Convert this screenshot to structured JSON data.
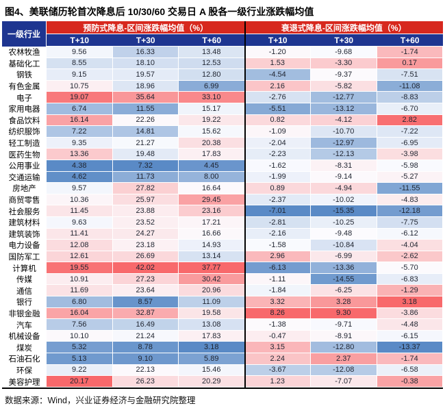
{
  "title": "图4、美联储历轮首次降息后 10/30/60 交易日 A 股各一级行业涨跌幅均值",
  "source": "数据来源：Wind，兴业证券经济与金融研究院整理",
  "colors": {
    "header_red": "#D7281E",
    "header_navy": "#1E3590",
    "divider_black": "#000000",
    "value_text": "#1F2430",
    "scale_low": "#5A8AC6",
    "scale_mid": "#FCFCFF",
    "scale_high": "#F8696B"
  },
  "chart_data": {
    "type": "heatmap",
    "title": "图4、美联储历轮首次降息后 10/30/60 交易日 A 股各一级行业涨跌幅均值",
    "row_header": "一级行业",
    "groups": [
      {
        "label": "预防式降息-区间涨跌幅均值（%）",
        "columns": [
          "T+10",
          "T+30",
          "T+60"
        ]
      },
      {
        "label": "衰退式降息-区间涨跌幅均值（%）",
        "columns": [
          "T+10",
          "T+30",
          "T+60"
        ]
      }
    ],
    "heatmap_rule": "per-column 3-color scale: min=scale_low(blue), median=scale_mid(white), max=scale_high(red)",
    "rows": [
      {
        "industry": "农林牧渔",
        "values": [
          [
            9.56,
            16.33,
            13.48
          ],
          [
            -1.2,
            -9.68,
            -1.74
          ]
        ]
      },
      {
        "industry": "基础化工",
        "values": [
          [
            8.55,
            18.1,
            12.53
          ],
          [
            1.53,
            -3.3,
            0.17
          ]
        ]
      },
      {
        "industry": "钢铁",
        "values": [
          [
            9.15,
            19.57,
            12.8
          ],
          [
            -4.54,
            -9.37,
            -7.51
          ]
        ]
      },
      {
        "industry": "有色金属",
        "values": [
          [
            10.75,
            18.96,
            6.99
          ],
          [
            2.16,
            -5.82,
            -11.08
          ]
        ]
      },
      {
        "industry": "电子",
        "values": [
          [
            19.07,
            35.64,
            33.1
          ],
          [
            -2.76,
            -12.77,
            -8.83
          ]
        ]
      },
      {
        "industry": "家用电器",
        "values": [
          [
            6.74,
            11.55,
            15.17
          ],
          [
            -5.51,
            -13.12,
            -6.7
          ]
        ]
      },
      {
        "industry": "食品饮料",
        "values": [
          [
            16.14,
            22.26,
            19.22
          ],
          [
            0.82,
            -4.12,
            2.82
          ]
        ]
      },
      {
        "industry": "纺织服饰",
        "values": [
          [
            7.22,
            14.81,
            15.62
          ],
          [
            -1.09,
            -10.7,
            -7.22
          ]
        ]
      },
      {
        "industry": "轻工制造",
        "values": [
          [
            9.35,
            21.27,
            20.38
          ],
          [
            -2.04,
            -12.97,
            -6.95
          ]
        ]
      },
      {
        "industry": "医药生物",
        "values": [
          [
            13.36,
            19.48,
            17.83
          ],
          [
            -2.23,
            -12.13,
            -3.98
          ]
        ]
      },
      {
        "industry": "公用事业",
        "values": [
          [
            4.38,
            7.32,
            4.45
          ],
          [
            -1.62,
            -8.31,
            -5.98
          ]
        ]
      },
      {
        "industry": "交通运输",
        "values": [
          [
            4.62,
            11.73,
            8.0
          ],
          [
            -1.99,
            -9.14,
            -5.27
          ]
        ]
      },
      {
        "industry": "房地产",
        "values": [
          [
            9.57,
            27.82,
            16.64
          ],
          [
            0.89,
            -4.94,
            -11.55
          ]
        ]
      },
      {
        "industry": "商贸零售",
        "values": [
          [
            10.36,
            25.97,
            29.45
          ],
          [
            -2.37,
            -10.02,
            -4.83
          ]
        ]
      },
      {
        "industry": "社会服务",
        "values": [
          [
            11.45,
            23.88,
            23.16
          ],
          [
            -7.01,
            -15.35,
            -12.18
          ]
        ]
      },
      {
        "industry": "建筑材料",
        "values": [
          [
            9.63,
            23.52,
            17.21
          ],
          [
            -2.81,
            -10.25,
            -7.75
          ]
        ]
      },
      {
        "industry": "建筑装饰",
        "values": [
          [
            11.41,
            24.27,
            16.66
          ],
          [
            -2.16,
            -9.48,
            -6.12
          ]
        ]
      },
      {
        "industry": "电力设备",
        "values": [
          [
            12.08,
            23.18,
            14.93
          ],
          [
            -1.58,
            -10.84,
            -4.04
          ]
        ]
      },
      {
        "industry": "国防军工",
        "values": [
          [
            12.61,
            26.69,
            13.14
          ],
          [
            2.96,
            -6.99,
            -2.62
          ]
        ]
      },
      {
        "industry": "计算机",
        "values": [
          [
            19.55,
            42.02,
            37.77
          ],
          [
            -6.13,
            -13.36,
            -5.7
          ]
        ]
      },
      {
        "industry": "传媒",
        "values": [
          [
            10.91,
            27.23,
            30.42
          ],
          [
            -1.11,
            -14.55,
            -6.83
          ]
        ]
      },
      {
        "industry": "通信",
        "values": [
          [
            11.69,
            23.64,
            20.96
          ],
          [
            -1.84,
            -6.25,
            -1.29
          ]
        ]
      },
      {
        "industry": "银行",
        "values": [
          [
            6.8,
            8.57,
            11.09
          ],
          [
            3.32,
            3.28,
            3.18
          ]
        ]
      },
      {
        "industry": "非银金融",
        "values": [
          [
            16.04,
            32.87,
            19.58
          ],
          [
            8.26,
            9.3,
            -3.86
          ]
        ]
      },
      {
        "industry": "汽车",
        "values": [
          [
            7.56,
            16.49,
            13.08
          ],
          [
            -1.38,
            -9.71,
            -4.48
          ]
        ]
      },
      {
        "industry": "机械设备",
        "values": [
          [
            10.1,
            21.24,
            17.83
          ],
          [
            -0.47,
            -8.91,
            -6.15
          ]
        ]
      },
      {
        "industry": "煤炭",
        "values": [
          [
            5.32,
            8.78,
            3.18
          ],
          [
            3.15,
            -12.8,
            -13.37
          ]
        ]
      },
      {
        "industry": "石油石化",
        "values": [
          [
            5.13,
            9.1,
            5.89
          ],
          [
            2.24,
            2.37,
            -1.74
          ]
        ]
      },
      {
        "industry": "环保",
        "values": [
          [
            9.22,
            22.13,
            15.46
          ],
          [
            -3.67,
            -12.08,
            -6.58
          ]
        ]
      },
      {
        "industry": "美容护理",
        "values": [
          [
            20.17,
            26.23,
            20.29
          ],
          [
            1.23,
            -7.07,
            -0.38
          ]
        ]
      }
    ]
  }
}
